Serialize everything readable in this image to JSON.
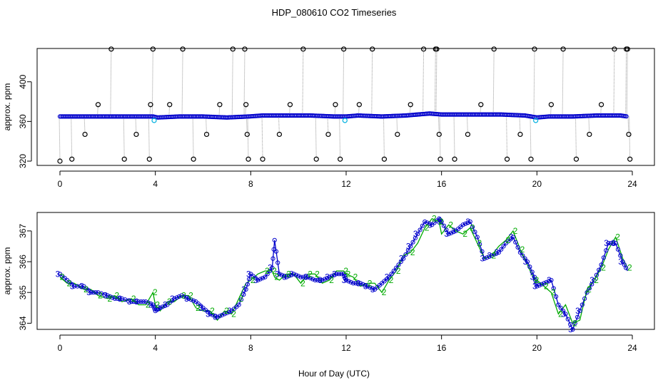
{
  "title": "HDP_080610  CO2 Timeseries",
  "xlabel": "Hour of Day (UTC)",
  "colors": {
    "top_points": "#0000cc",
    "top_flagged": "#00b0e0",
    "outlier_points": "#000000",
    "series3": "#0000cc",
    "series2": "#00aa00",
    "connector": "#999999"
  },
  "chart_data": [
    {
      "type": "scatter",
      "ylabel": "approx. ppm",
      "xlim": [
        0,
        24
      ],
      "ylim": [
        320,
        430
      ],
      "x_ticks": [
        "0",
        "4",
        "8",
        "12",
        "16",
        "20",
        "24"
      ],
      "y_ticks": [
        "320",
        "360",
        "400"
      ],
      "baseline_x": [
        0.0,
        1.0,
        2.0,
        3.0,
        3.9,
        4.1,
        5.0,
        6.0,
        7.0,
        7.9,
        8.5,
        9.5,
        10.5,
        11.5,
        12.0,
        12.5,
        13.5,
        14.5,
        15.5,
        16.0,
        16.5,
        17.5,
        18.5,
        19.5,
        20.0,
        20.5,
        21.5,
        22.5,
        23.5,
        23.8
      ],
      "baseline_y": [
        365,
        365,
        365,
        365,
        365,
        364,
        365,
        365,
        364,
        365,
        366,
        366,
        366,
        365,
        365,
        366,
        365,
        366,
        368,
        367,
        367,
        367,
        367,
        366,
        364,
        365,
        365,
        366,
        366,
        365
      ],
      "flagged_points": [
        {
          "x": 3.95,
          "y": 361
        },
        {
          "x": 11.95,
          "y": 361
        },
        {
          "x": 19.95,
          "y": 361
        }
      ],
      "outliers": [
        {
          "x": 0.0,
          "y": 320
        },
        {
          "x": 0.5,
          "y": 322
        },
        {
          "x": 1.05,
          "y": 347
        },
        {
          "x": 1.6,
          "y": 377
        },
        {
          "x": 2.15,
          "y": 433
        },
        {
          "x": 2.7,
          "y": 322
        },
        {
          "x": 3.2,
          "y": 347
        },
        {
          "x": 3.75,
          "y": 322
        },
        {
          "x": 3.8,
          "y": 377
        },
        {
          "x": 3.9,
          "y": 433
        },
        {
          "x": 4.6,
          "y": 377
        },
        {
          "x": 5.15,
          "y": 433
        },
        {
          "x": 5.6,
          "y": 322
        },
        {
          "x": 6.15,
          "y": 347
        },
        {
          "x": 6.7,
          "y": 377
        },
        {
          "x": 7.25,
          "y": 433
        },
        {
          "x": 7.75,
          "y": 433
        },
        {
          "x": 7.8,
          "y": 377
        },
        {
          "x": 7.85,
          "y": 347
        },
        {
          "x": 7.9,
          "y": 322
        },
        {
          "x": 8.5,
          "y": 322
        },
        {
          "x": 9.2,
          "y": 347
        },
        {
          "x": 9.65,
          "y": 377
        },
        {
          "x": 10.2,
          "y": 433
        },
        {
          "x": 10.75,
          "y": 322
        },
        {
          "x": 11.25,
          "y": 347
        },
        {
          "x": 11.55,
          "y": 377
        },
        {
          "x": 11.75,
          "y": 322
        },
        {
          "x": 11.9,
          "y": 433
        },
        {
          "x": 12.55,
          "y": 377
        },
        {
          "x": 13.1,
          "y": 433
        },
        {
          "x": 13.6,
          "y": 322
        },
        {
          "x": 14.15,
          "y": 347
        },
        {
          "x": 14.7,
          "y": 377
        },
        {
          "x": 15.25,
          "y": 433
        },
        {
          "x": 15.75,
          "y": 433
        },
        {
          "x": 15.8,
          "y": 433
        },
        {
          "x": 15.9,
          "y": 347
        },
        {
          "x": 15.95,
          "y": 322
        },
        {
          "x": 16.55,
          "y": 322
        },
        {
          "x": 17.1,
          "y": 347
        },
        {
          "x": 17.65,
          "y": 377
        },
        {
          "x": 18.2,
          "y": 433
        },
        {
          "x": 18.75,
          "y": 322
        },
        {
          "x": 19.3,
          "y": 347
        },
        {
          "x": 19.75,
          "y": 322
        },
        {
          "x": 19.9,
          "y": 433
        },
        {
          "x": 20.6,
          "y": 377
        },
        {
          "x": 21.1,
          "y": 433
        },
        {
          "x": 21.65,
          "y": 322
        },
        {
          "x": 22.2,
          "y": 347
        },
        {
          "x": 22.7,
          "y": 377
        },
        {
          "x": 23.25,
          "y": 433
        },
        {
          "x": 23.75,
          "y": 433
        },
        {
          "x": 23.8,
          "y": 433
        },
        {
          "x": 23.85,
          "y": 347
        },
        {
          "x": 23.9,
          "y": 322
        }
      ]
    },
    {
      "type": "line",
      "ylabel": "approx. ppm",
      "xlim": [
        0,
        24
      ],
      "ylim": [
        363.8,
        367.6
      ],
      "x_ticks": [
        "0",
        "4",
        "8",
        "12",
        "16",
        "20",
        "24"
      ],
      "y_ticks": [
        "364",
        "365",
        "366",
        "367"
      ],
      "x": [
        0.0,
        0.3,
        0.6,
        1.0,
        1.3,
        1.6,
        2.0,
        2.3,
        2.6,
        3.0,
        3.3,
        3.6,
        3.9,
        4.0,
        4.2,
        4.5,
        4.8,
        5.1,
        5.4,
        5.7,
        6.0,
        6.3,
        6.6,
        6.9,
        7.2,
        7.5,
        7.8,
        8.0,
        8.3,
        8.6,
        8.9,
        9.0,
        9.2,
        9.5,
        9.8,
        10.1,
        10.4,
        10.7,
        11.0,
        11.3,
        11.6,
        11.9,
        12.0,
        12.3,
        12.6,
        12.9,
        13.2,
        13.5,
        13.8,
        14.1,
        14.4,
        14.7,
        15.0,
        15.3,
        15.6,
        15.9,
        16.0,
        16.3,
        16.6,
        16.9,
        17.2,
        17.5,
        17.8,
        18.1,
        18.4,
        18.7,
        19.0,
        19.3,
        19.6,
        19.9,
        20.0,
        20.3,
        20.6,
        20.9,
        21.2,
        21.5,
        21.8,
        22.1,
        22.4,
        22.7,
        23.0,
        23.3,
        23.6,
        23.8
      ],
      "series": [
        {
          "values": [
            365.6,
            365.4,
            365.2,
            365.2,
            365.0,
            365.0,
            364.9,
            364.8,
            364.8,
            364.7,
            364.7,
            364.7,
            364.6,
            364.4,
            364.5,
            364.6,
            364.8,
            364.9,
            364.8,
            364.7,
            364.5,
            364.3,
            364.2,
            364.3,
            364.4,
            364.6,
            365.1,
            365.6,
            365.4,
            365.5,
            365.8,
            366.7,
            365.6,
            365.5,
            365.6,
            365.5,
            365.5,
            365.4,
            365.4,
            365.5,
            365.6,
            365.6,
            365.4,
            365.3,
            365.3,
            365.2,
            365.1,
            365.3,
            365.5,
            365.8,
            366.1,
            366.5,
            366.9,
            367.3,
            367.2,
            367.4,
            367.3,
            366.9,
            367.0,
            367.2,
            367.3,
            366.8,
            366.1,
            366.2,
            366.3,
            366.6,
            366.8,
            366.3,
            366.0,
            365.5,
            365.2,
            365.3,
            365.4,
            364.6,
            364.3,
            363.8,
            364.4,
            365.0,
            365.4,
            365.9,
            366.6,
            366.6,
            366.0,
            365.7
          ]
        },
        {
          "values": [
            365.5,
            365.3,
            365.3,
            365.1,
            365.1,
            364.9,
            364.8,
            364.9,
            364.7,
            364.8,
            364.6,
            364.6,
            365.0,
            364.6,
            364.4,
            364.7,
            364.7,
            364.9,
            364.9,
            364.5,
            364.4,
            364.4,
            364.1,
            364.4,
            364.3,
            364.8,
            365.3,
            365.4,
            365.6,
            365.7,
            365.7,
            365.5,
            365.4,
            365.6,
            365.6,
            365.3,
            365.6,
            365.6,
            365.3,
            365.4,
            365.7,
            365.7,
            365.6,
            365.5,
            365.2,
            365.3,
            365.3,
            365.0,
            365.4,
            365.7,
            366.2,
            366.3,
            366.6,
            367.1,
            367.4,
            367.3,
            366.9,
            367.2,
            367.0,
            366.9,
            367.1,
            366.6,
            366.1,
            366.2,
            366.5,
            366.7,
            367.0,
            366.4,
            365.9,
            365.4,
            365.4,
            365.2,
            365.0,
            364.3,
            364.6,
            364.0,
            364.1,
            365.1,
            365.4,
            365.8,
            366.4,
            366.8,
            366.1,
            365.8
          ]
        }
      ]
    }
  ]
}
